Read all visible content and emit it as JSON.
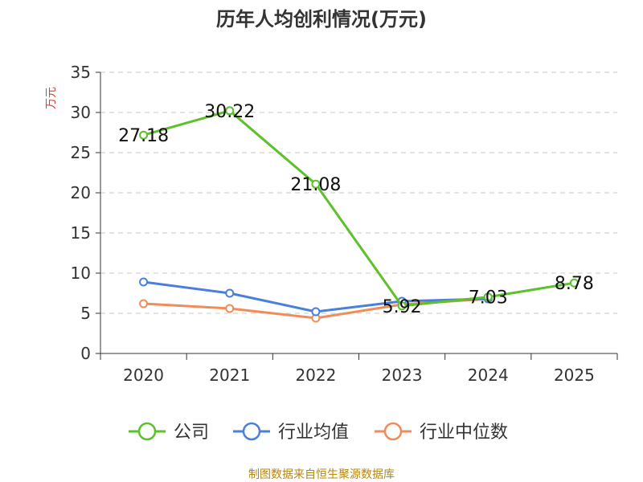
{
  "chart_data": {
    "type": "line",
    "title": "历年人均创利情况(万元)",
    "ylabel": "万元",
    "xlabel": "",
    "categories": [
      "2020",
      "2021",
      "2022",
      "2023",
      "2024",
      "2025"
    ],
    "ylim": [
      0,
      35
    ],
    "yticks": [
      0,
      5,
      10,
      15,
      20,
      25,
      30,
      35
    ],
    "grid": "horizontal-dashed",
    "legend_position": "bottom",
    "series": [
      {
        "name": "公司",
        "color": "#5cc12b",
        "values": [
          27.18,
          30.22,
          21.08,
          5.92,
          7.03,
          8.78
        ],
        "labels": [
          "27.18",
          "30.22",
          "21.08",
          "5.92",
          "7.03",
          "8.78"
        ]
      },
      {
        "name": "行业均值",
        "color": "#4a7fdc",
        "values": [
          8.9,
          7.5,
          5.2,
          6.5,
          6.8,
          null
        ]
      },
      {
        "name": "行业中位数",
        "color": "#f08c5a",
        "values": [
          6.2,
          5.6,
          4.4,
          6.1,
          6.8,
          null
        ]
      }
    ],
    "source": "制图数据来自恒生聚源数据库"
  }
}
